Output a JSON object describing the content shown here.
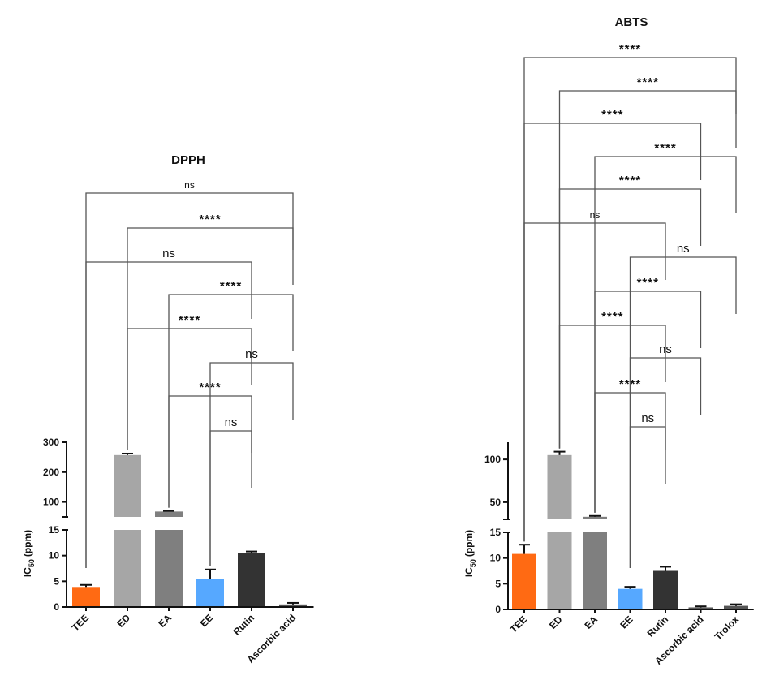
{
  "chart_data": [
    {
      "type": "bar",
      "title": "DPPH",
      "ylabel": "IC50 (ppm)",
      "ylabel_main": "IC",
      "ylabel_sub": "50",
      "ylabel_unit": "(ppm)",
      "axis_break": true,
      "lower_ylim": [
        0,
        15
      ],
      "upper_ylim": [
        50,
        300
      ],
      "lower_ticks": [
        "0",
        "5",
        "10",
        "15"
      ],
      "upper_ticks": [
        "100",
        "200",
        "300"
      ],
      "categories": [
        "TEE",
        "ED",
        "EA",
        "EE",
        "Rutin",
        "Ascorbic acid"
      ],
      "values": [
        3.9,
        257,
        68,
        5.5,
        10.5,
        0.5
      ],
      "errors": [
        0.4,
        5,
        2,
        1.8,
        0.3,
        0.3
      ],
      "colors": [
        "#ff6a13",
        "#a6a6a6",
        "#7f7f7f",
        "#56a8ff",
        "#333333",
        "#555555"
      ],
      "comparisons": [
        {
          "from": "TEE",
          "to": "Ascorbic acid",
          "label": "ns",
          "small": true
        },
        {
          "from": "ED",
          "to": "Ascorbic acid",
          "label": "****"
        },
        {
          "from": "TEE",
          "to": "Rutin",
          "label": "ns"
        },
        {
          "from": "EA",
          "to": "Ascorbic acid",
          "label": "****"
        },
        {
          "from": "ED",
          "to": "Rutin",
          "label": "****"
        },
        {
          "from": "EE",
          "to": "Ascorbic acid",
          "label": "ns"
        },
        {
          "from": "EA",
          "to": "Rutin",
          "label": "****"
        },
        {
          "from": "EE",
          "to": "Rutin",
          "label": "ns"
        }
      ]
    },
    {
      "type": "bar",
      "title": "ABTS",
      "ylabel": "IC50 (ppm)",
      "ylabel_main": "IC",
      "ylabel_sub": "50",
      "ylabel_unit": "(ppm)",
      "axis_break": true,
      "lower_ylim": [
        0,
        15
      ],
      "upper_ylim": [
        30,
        120
      ],
      "lower_ticks": [
        "0",
        "5",
        "10",
        "15"
      ],
      "upper_ticks": [
        "50",
        "100"
      ],
      "categories": [
        "TEE",
        "ED",
        "EA",
        "EE",
        "Rutin",
        "Ascorbic acid",
        "Trolox"
      ],
      "values": [
        10.8,
        105,
        33,
        4.0,
        7.5,
        0.4,
        0.7
      ],
      "errors": [
        1.8,
        4,
        1.0,
        0.4,
        0.8,
        0.2,
        0.3
      ],
      "colors": [
        "#ff6a13",
        "#a6a6a6",
        "#7f7f7f",
        "#56a8ff",
        "#333333",
        "#555555",
        "#555555"
      ],
      "comparisons": [
        {
          "from": "TEE",
          "to": "Trolox",
          "label": "****"
        },
        {
          "from": "ED",
          "to": "Trolox",
          "label": "****"
        },
        {
          "from": "TEE",
          "to": "Ascorbic acid",
          "label": "****"
        },
        {
          "from": "EA",
          "to": "Trolox",
          "label": "****"
        },
        {
          "from": "ED",
          "to": "Ascorbic acid",
          "label": "****"
        },
        {
          "from": "TEE",
          "to": "Rutin",
          "label": "ns",
          "small": true
        },
        {
          "from": "EE",
          "to": "Trolox",
          "label": "ns"
        },
        {
          "from": "EA",
          "to": "Ascorbic acid",
          "label": "****"
        },
        {
          "from": "ED",
          "to": "Rutin",
          "label": "****"
        },
        {
          "from": "EE",
          "to": "Ascorbic acid",
          "label": "ns"
        },
        {
          "from": "EA",
          "to": "Rutin",
          "label": "****"
        },
        {
          "from": "EE",
          "to": "Rutin",
          "label": "ns"
        }
      ]
    }
  ]
}
